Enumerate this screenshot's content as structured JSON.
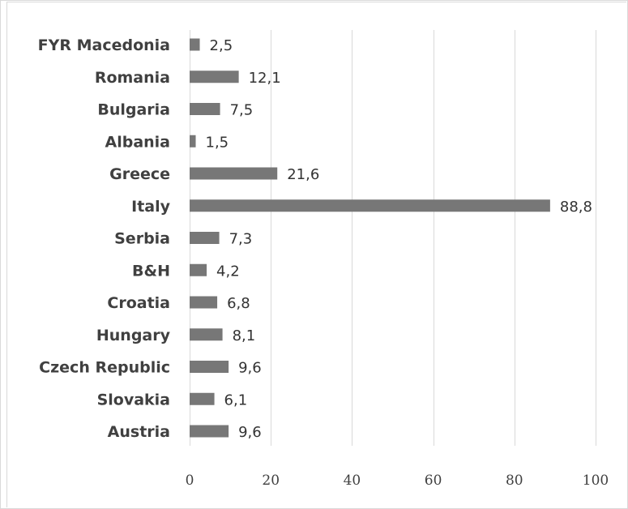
{
  "chart_data": {
    "type": "bar",
    "orientation": "horizontal",
    "categories": [
      "FYR Macedonia",
      "Romania",
      "Bulgaria",
      "Albania",
      "Greece",
      "Italy",
      "Serbia",
      "B&H",
      "Croatia",
      "Hungary",
      "Czech Republic",
      "Slovakia",
      "Austria"
    ],
    "values": [
      2.5,
      12.1,
      7.5,
      1.5,
      21.6,
      88.8,
      7.3,
      4.2,
      6.8,
      8.1,
      9.6,
      6.1,
      9.6
    ],
    "value_labels": [
      "2,5",
      "12,1",
      "7,5",
      "1,5",
      "21,6",
      "88,8",
      "7,3",
      "4,2",
      "6,8",
      "8,1",
      "9,6",
      "6,1",
      "9,6"
    ],
    "title": "",
    "xlabel": "",
    "ylabel": "",
    "xlim": [
      0,
      100
    ],
    "xticks": [
      0,
      20,
      40,
      60,
      80,
      100
    ],
    "xtick_labels": [
      "0",
      "20",
      "40",
      "60",
      "80",
      "100"
    ],
    "grid": "vertical",
    "legend": "none",
    "colors": {
      "bar": "#777777",
      "grid": "#d9d9d9",
      "text": "#404040"
    }
  }
}
